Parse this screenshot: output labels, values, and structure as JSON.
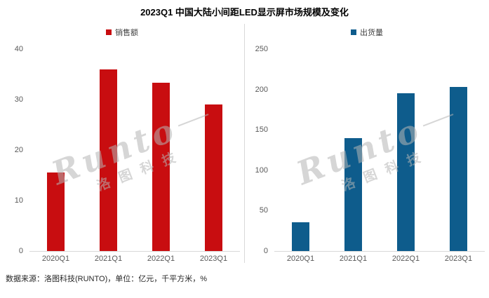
{
  "title": "2023Q1 中国大陆小间距LED显示屏市场规模及变化",
  "footer": "数据来源：洛图科技(RUNTO)，单位：亿元，千平方米，%",
  "watermark": {
    "brand": "Runto",
    "cn": "洛图科技"
  },
  "chart_data": [
    {
      "type": "bar",
      "legend": "销售额",
      "color": "#c80d10",
      "categories": [
        "2020Q1",
        "2021Q1",
        "2022Q1",
        "2023Q1"
      ],
      "values": [
        15.5,
        36,
        33.3,
        29
      ],
      "ylim": [
        0,
        40
      ],
      "y_ticks": [
        0,
        10,
        20,
        30,
        40
      ],
      "grid": false,
      "legend_position": "top",
      "unit": "亿元"
    },
    {
      "type": "bar",
      "legend": "出货量",
      "color": "#0e5c8c",
      "categories": [
        "2020Q1",
        "2021Q1",
        "2022Q1",
        "2023Q1"
      ],
      "values": [
        36,
        140,
        195,
        203
      ],
      "ylim": [
        0,
        250
      ],
      "y_ticks": [
        0,
        50,
        100,
        150,
        200,
        250
      ],
      "grid": false,
      "legend_position": "top",
      "unit": "千平方米"
    }
  ]
}
